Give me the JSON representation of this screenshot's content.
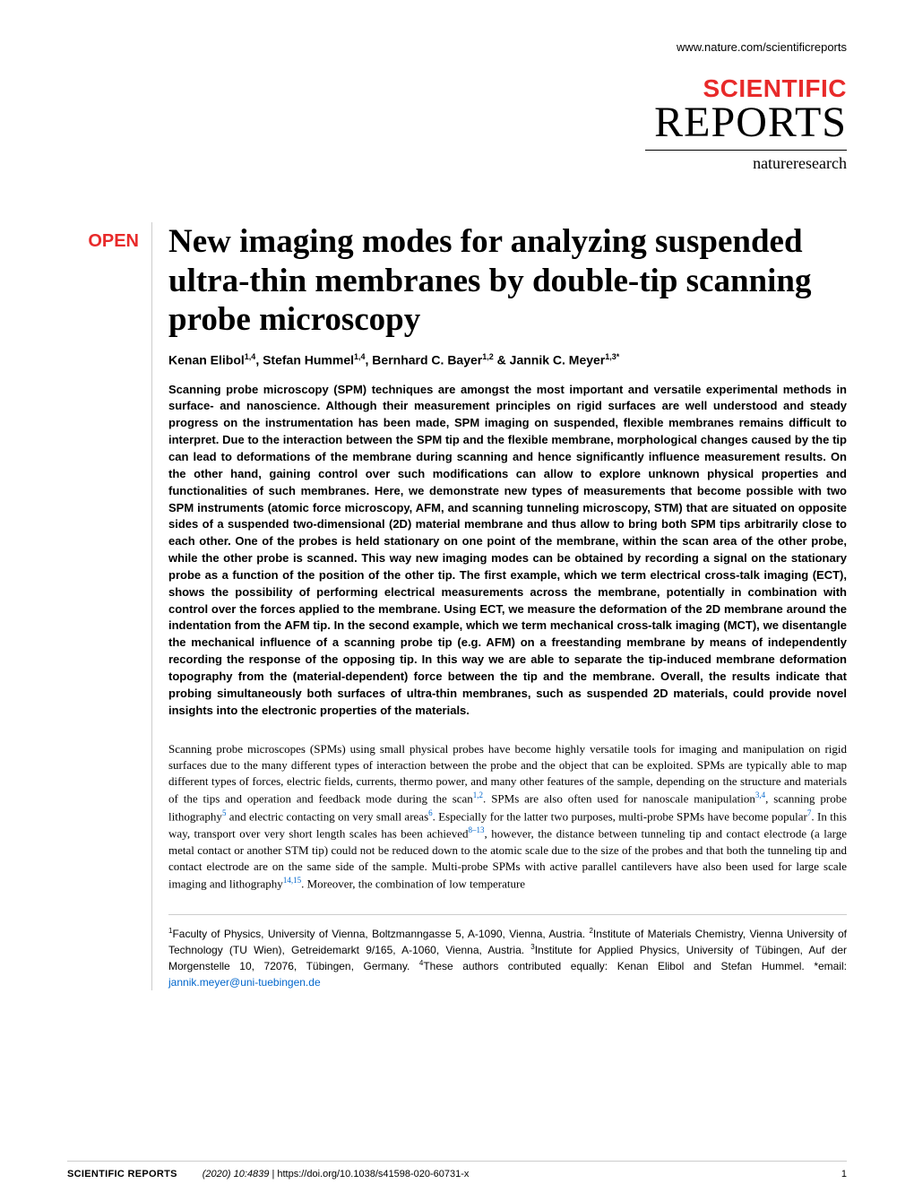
{
  "header": {
    "url": "www.nature.com/scientificreports",
    "journal_word1": "SCIENTIFIC",
    "journal_word2": "REPORTS",
    "brand": "natureresearch"
  },
  "badge": {
    "open": "OPEN"
  },
  "article": {
    "title": "New imaging modes for analyzing suspended ultra-thin membranes by double-tip scanning probe microscopy",
    "authors_html": "Kenan Elibol<sup>1,4</sup>, Stefan Hummel<sup>1,4</sup>, Bernhard C. Bayer<sup>1,2</sup> & Jannik C. Meyer<sup>1,3*</sup>",
    "abstract": "Scanning probe microscopy (SPM) techniques are amongst the most important and versatile experimental methods in surface- and nanoscience. Although their measurement principles on rigid surfaces are well understood and steady progress on the instrumentation has been made, SPM imaging on suspended, flexible membranes remains difficult to interpret. Due to the interaction between the SPM tip and the flexible membrane, morphological changes caused by the tip can lead to deformations of the membrane during scanning and hence significantly influence measurement results. On the other hand, gaining control over such modifications can allow to explore unknown physical properties and functionalities of such membranes. Here, we demonstrate new types of measurements that become possible with two SPM instruments (atomic force microscopy, AFM, and scanning tunneling microscopy, STM) that are situated on opposite sides of a suspended two-dimensional (2D) material membrane and thus allow to bring both SPM tips arbitrarily close to each other. One of the probes is held stationary on one point of the membrane, within the scan area of the other probe, while the other probe is scanned. This way new imaging modes can be obtained by recording a signal on the stationary probe as a function of the position of the other tip. The first example, which we term electrical cross-talk imaging (ECT), shows the possibility of performing electrical measurements across the membrane, potentially in combination with control over the forces applied to the membrane. Using ECT, we measure the deformation of the 2D membrane around the indentation from the AFM tip. In the second example, which we term mechanical cross-talk imaging (MCT), we disentangle the mechanical influence of a scanning probe tip (e.g. AFM) on a freestanding membrane by means of independently recording the response of the opposing tip. In this way we are able to separate the tip-induced membrane deformation topography from the (material-dependent) force between the tip and the membrane. Overall, the results indicate that probing simultaneously both surfaces of ultra-thin membranes, such as suspended 2D materials, could provide novel insights into the electronic properties of the materials.",
    "body_html": "Scanning probe microscopes (SPMs) using small physical probes have become highly versatile tools for imaging and manipulation on rigid surfaces due to the many different types of interaction between the probe and the object that can be exploited. SPMs are typically able to map different types of forces, electric fields, currents, thermo power, and many other features of the sample, depending on the structure and materials of the tips and operation and feedback mode during the scan<sup class=\"ref-link\">1,2</sup>. SPMs are also often used for nanoscale manipulation<sup class=\"ref-link\">3,4</sup>, scanning probe lithography<sup class=\"ref-link\">5</sup> and electric contacting on very small areas<sup class=\"ref-link\">6</sup>. Especially for the latter two purposes, multi-probe SPMs have become popular<sup class=\"ref-link\">7</sup>. In this way, transport over very short length scales has been achieved<sup class=\"ref-link\">8–13</sup>, however, the distance between tunneling tip and contact electrode (a large metal contact or another STM tip) could not be reduced down to the atomic scale due to the size of the probes and that both the tunneling tip and contact electrode are on the same side of the sample. Multi-probe SPMs with active parallel cantilevers have also been used for large scale imaging and lithography<sup class=\"ref-link\">14,15</sup>. Moreover, the combination of low temperature",
    "affiliations_html": "<sup>1</sup>Faculty of Physics, University of Vienna, Boltzmanngasse 5, A-1090, Vienna, Austria. <sup>2</sup>Institute of Materials Chemistry, Vienna University of Technology (TU Wien), Getreidemarkt 9/165, A-1060, Vienna, Austria. <sup>3</sup>Institute for Applied Physics, University of Tübingen, Auf der Morgenstelle 10, 72076, Tübingen, Germany. <sup>4</sup>These authors contributed equally: Kenan Elibol and Stefan Hummel. *email: <span class=\"email-link\">jannik.meyer@uni-tuebingen.de</span>"
  },
  "footer": {
    "journal": "SCIENTIFIC REPORTS",
    "citation": "(2020) 10:4839",
    "doi": "| https://doi.org/10.1038/s41598-020-60731-x",
    "page": "1"
  },
  "colors": {
    "accent": "#e82a2a",
    "link": "#0066cc",
    "text": "#000000",
    "background": "#ffffff",
    "divider": "#cccccc"
  },
  "typography": {
    "title_fontsize": 37,
    "abstract_fontsize": 13,
    "body_fontsize": 13,
    "authors_fontsize": 14,
    "footer_fontsize": 11
  }
}
